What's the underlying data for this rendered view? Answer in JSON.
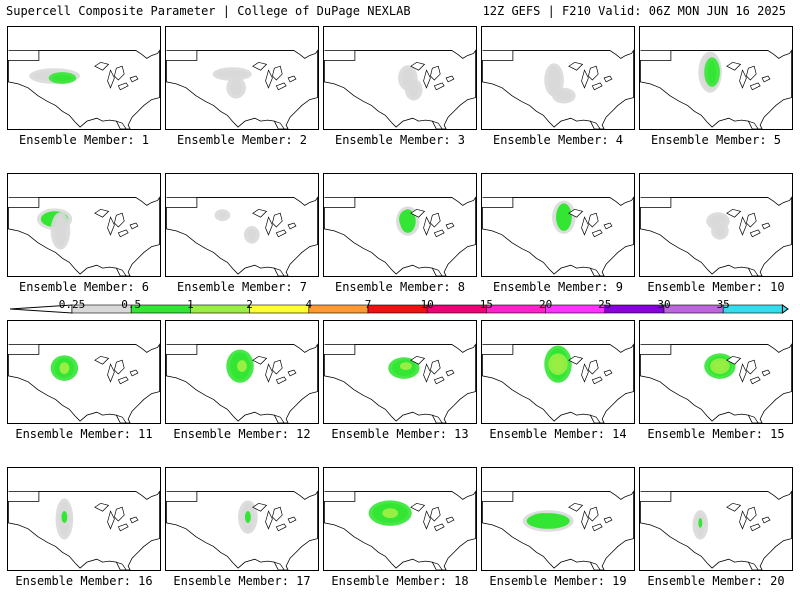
{
  "header": {
    "title_left": "Supercell Composite Parameter | College of DuPage NEXLAB",
    "title_right": "12Z GEFS | F210 Valid: 06Z MON JUN 16 2025"
  },
  "panels": [
    {
      "label": "Ensemble Member: 1"
    },
    {
      "label": "Ensemble Member: 2"
    },
    {
      "label": "Ensemble Member: 3"
    },
    {
      "label": "Ensemble Member: 4"
    },
    {
      "label": "Ensemble Member: 5"
    },
    {
      "label": "Ensemble Member: 6"
    },
    {
      "label": "Ensemble Member: 7"
    },
    {
      "label": "Ensemble Member: 8"
    },
    {
      "label": "Ensemble Member: 9"
    },
    {
      "label": "Ensemble Member: 10"
    },
    {
      "label": "Ensemble Member: 11"
    },
    {
      "label": "Ensemble Member: 12"
    },
    {
      "label": "Ensemble Member: 13"
    },
    {
      "label": "Ensemble Member: 14"
    },
    {
      "label": "Ensemble Member: 15"
    },
    {
      "label": "Ensemble Member: 16"
    },
    {
      "label": "Ensemble Member: 17"
    },
    {
      "label": "Ensemble Member: 18"
    },
    {
      "label": "Ensemble Member: 19"
    },
    {
      "label": "Ensemble Member: 20"
    }
  ],
  "colorbar": {
    "ticks": [
      "0.25",
      "0.5",
      "1",
      "2",
      "4",
      "7",
      "10",
      "15",
      "20",
      "25",
      "30",
      "35"
    ],
    "colors": [
      "#d9d9d9",
      "#33e633",
      "#99ee44",
      "#ffff33",
      "#ff9933",
      "#ee1111",
      "#ee0077",
      "#ff22cc",
      "#ff33ff",
      "#8800dd",
      "#bb66dd",
      "#33ddee"
    ]
  }
}
